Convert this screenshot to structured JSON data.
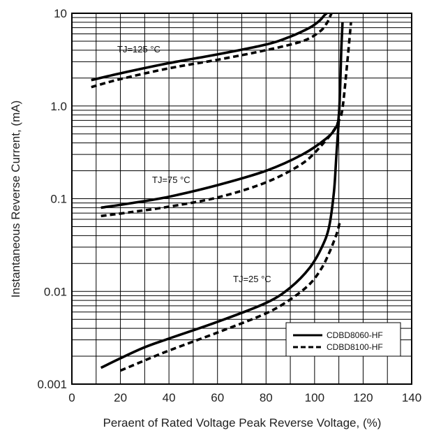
{
  "chart_data": {
    "type": "line",
    "xlabel": "Peraent of Rated Voltage Peak Reverse Voltage, (%)",
    "ylabel": "Instantaneous Reverse Current, (mA)",
    "xlim": [
      0,
      140
    ],
    "ylim": [
      0.001,
      10
    ],
    "yscale": "log",
    "x_ticks": [
      0,
      20,
      40,
      60,
      80,
      100,
      120,
      140
    ],
    "x_tick_labels": [
      "0",
      "20",
      "40",
      "60",
      "80",
      "100",
      "120",
      "140"
    ],
    "y_ticks": [
      0.001,
      0.01,
      0.1,
      1,
      10
    ],
    "y_tick_labels": [
      "0.001",
      "0.01",
      "0.1",
      "1.0",
      "10"
    ],
    "grid": true,
    "legend": {
      "placement": "bottom-right",
      "entries": [
        {
          "name": "CDBD8060-HF",
          "style": "solid"
        },
        {
          "name": "CDBD8100-HF",
          "style": "dashed"
        }
      ]
    },
    "annotations": [
      {
        "text": "TJ=125 °C",
        "x": 28,
        "y": 3.2
      },
      {
        "text": "TJ=75 °C",
        "x": 26,
        "y": 0.135
      },
      {
        "text": "TJ=25 °C",
        "x": 76,
        "y": 0.0135
      }
    ],
    "series": [
      {
        "name": "CDBD8060-HF",
        "style": "solid",
        "condition": "TJ=125 °C",
        "x": [
          8,
          20,
          40,
          60,
          80,
          90,
          98,
          102,
          104,
          105
        ],
        "y": [
          1.9,
          2.25,
          2.9,
          3.6,
          4.6,
          5.6,
          7.0,
          8.3,
          9.5,
          10.0
        ]
      },
      {
        "name": "CDBD8100-HF",
        "style": "dashed",
        "condition": "TJ=125 °C",
        "x": [
          8,
          20,
          40,
          60,
          80,
          95,
          102,
          105,
          106.5,
          107
        ],
        "y": [
          1.6,
          1.95,
          2.55,
          3.15,
          4.0,
          5.0,
          6.3,
          7.8,
          9.4,
          10.0
        ]
      },
      {
        "name": "CDBD8060-HF",
        "style": "solid",
        "condition": "TJ=75 °C",
        "x": [
          12,
          25,
          40,
          60,
          80,
          95,
          105,
          109,
          110,
          110.5,
          111,
          111.5
        ],
        "y": [
          0.08,
          0.09,
          0.105,
          0.14,
          0.2,
          0.3,
          0.45,
          0.6,
          0.8,
          1.5,
          4.0,
          8.0
        ]
      },
      {
        "name": "CDBD8100-HF",
        "style": "dashed",
        "condition": "TJ=75 °C",
        "x": [
          12,
          25,
          40,
          60,
          80,
          95,
          103,
          108,
          110,
          111,
          112,
          113.5,
          115
        ],
        "y": [
          0.065,
          0.072,
          0.082,
          0.103,
          0.15,
          0.24,
          0.38,
          0.55,
          0.7,
          0.8,
          1.2,
          3.0,
          8.0
        ]
      },
      {
        "name": "CDBD8060-HF",
        "style": "solid",
        "condition": "TJ=25 °C",
        "x": [
          12,
          20,
          30,
          40,
          60,
          80,
          90,
          98,
          103,
          106,
          108,
          109,
          110
        ],
        "y": [
          0.0015,
          0.0019,
          0.0025,
          0.0031,
          0.0047,
          0.0075,
          0.011,
          0.018,
          0.03,
          0.05,
          0.12,
          0.3,
          0.7
        ]
      },
      {
        "name": "CDBD8100-HF",
        "style": "dashed",
        "condition": "TJ=25 °C",
        "x": [
          20,
          30,
          40,
          60,
          80,
          90,
          98,
          103,
          106,
          108,
          109.5,
          110.5
        ],
        "y": [
          0.0014,
          0.0018,
          0.0023,
          0.0036,
          0.0058,
          0.0082,
          0.012,
          0.018,
          0.026,
          0.035,
          0.045,
          0.058
        ]
      }
    ]
  }
}
